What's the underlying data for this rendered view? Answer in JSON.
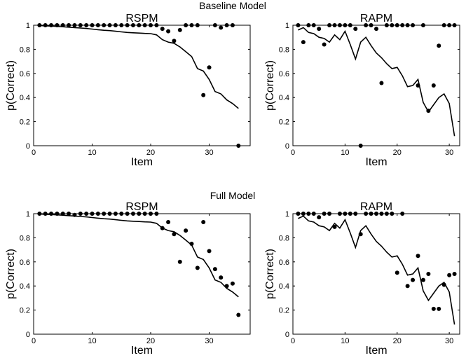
{
  "figure": {
    "sections": [
      "Baseline Model",
      "Full Model"
    ]
  },
  "chart_data": [
    {
      "type": "scatter",
      "panel": "baseline-rspm",
      "title": "RSPM",
      "xlabel": "Item",
      "ylabel": "p(Correct)",
      "xlim": [
        0,
        37
      ],
      "ylim": [
        0,
        1
      ],
      "xticks": [
        0,
        10,
        20,
        30
      ],
      "yticks": [
        0,
        0.2,
        0.4,
        0.6,
        0.8,
        1
      ],
      "series": [
        {
          "kind": "line",
          "x": [
            1,
            2,
            3,
            4,
            5,
            6,
            7,
            8,
            9,
            10,
            11,
            12,
            13,
            14,
            15,
            16,
            17,
            18,
            19,
            20,
            21,
            22,
            23,
            24,
            25,
            26,
            27,
            28,
            29,
            30,
            31,
            32,
            33,
            34,
            35
          ],
          "y": [
            0.997,
            0.995,
            0.993,
            0.99,
            0.987,
            0.984,
            0.98,
            0.977,
            0.973,
            0.968,
            0.963,
            0.958,
            0.955,
            0.95,
            0.945,
            0.94,
            0.937,
            0.935,
            0.932,
            0.93,
            0.92,
            0.88,
            0.86,
            0.85,
            0.82,
            0.78,
            0.74,
            0.64,
            0.62,
            0.55,
            0.45,
            0.43,
            0.38,
            0.35,
            0.31
          ]
        },
        {
          "kind": "points",
          "x": [
            1,
            2,
            3,
            4,
            5,
            6,
            7,
            8,
            9,
            10,
            11,
            12,
            13,
            14,
            15,
            16,
            17,
            18,
            19,
            20,
            21,
            22,
            23,
            24,
            25,
            26,
            27,
            28,
            29,
            30,
            31,
            32,
            33,
            34,
            35
          ],
          "y": [
            1,
            1,
            1,
            1,
            1,
            1,
            1,
            1,
            1,
            1,
            1,
            1,
            1,
            1,
            1,
            1,
            1,
            1,
            1,
            1,
            1,
            0.97,
            0.95,
            0.87,
            0.96,
            1,
            1,
            1,
            0.42,
            0.65,
            1,
            0.98,
            1,
            1,
            0
          ]
        }
      ]
    },
    {
      "type": "scatter",
      "panel": "baseline-rapm",
      "title": "RAPM",
      "xlabel": "Item",
      "ylabel": "p(Correct)",
      "xlim": [
        0,
        32
      ],
      "ylim": [
        0,
        1
      ],
      "xticks": [
        0,
        10,
        20,
        30
      ],
      "yticks": [
        0,
        0.2,
        0.4,
        0.6,
        0.8,
        1
      ],
      "series": [
        {
          "kind": "line",
          "x": [
            1,
            2,
            3,
            4,
            5,
            6,
            7,
            8,
            9,
            10,
            11,
            12,
            13,
            14,
            15,
            16,
            17,
            18,
            19,
            20,
            21,
            22,
            23,
            24,
            25,
            26,
            27,
            28,
            29,
            30,
            31
          ],
          "y": [
            0.96,
            0.98,
            0.94,
            0.93,
            0.9,
            0.89,
            0.86,
            0.92,
            0.88,
            0.95,
            0.84,
            0.72,
            0.86,
            0.9,
            0.83,
            0.77,
            0.73,
            0.68,
            0.64,
            0.65,
            0.58,
            0.49,
            0.5,
            0.55,
            0.36,
            0.28,
            0.34,
            0.4,
            0.43,
            0.35,
            0.08
          ]
        },
        {
          "kind": "points",
          "x": [
            1,
            2,
            3,
            4,
            5,
            6,
            7,
            8,
            9,
            10,
            11,
            12,
            13,
            14,
            15,
            16,
            17,
            18,
            19,
            20,
            21,
            22,
            23,
            24,
            25,
            26,
            27,
            28,
            29,
            30,
            31
          ],
          "y": [
            1,
            0.86,
            1,
            1,
            0.97,
            0.84,
            1,
            1,
            1,
            1,
            1,
            0.97,
            0,
            1,
            1,
            0.97,
            0.52,
            1,
            1,
            1,
            1,
            1,
            1,
            0.5,
            1,
            0.29,
            0.5,
            0.83,
            1,
            1,
            1
          ]
        }
      ]
    },
    {
      "type": "scatter",
      "panel": "full-rspm",
      "title": "RSPM",
      "xlabel": "Item",
      "ylabel": "p(Correct)",
      "xlim": [
        0,
        37
      ],
      "ylim": [
        0,
        1
      ],
      "xticks": [
        0,
        10,
        20,
        30
      ],
      "yticks": [
        0,
        0.2,
        0.4,
        0.6,
        0.8,
        1
      ],
      "series": [
        {
          "kind": "line",
          "x": [
            1,
            2,
            3,
            4,
            5,
            6,
            7,
            8,
            9,
            10,
            11,
            12,
            13,
            14,
            15,
            16,
            17,
            18,
            19,
            20,
            21,
            22,
            23,
            24,
            25,
            26,
            27,
            28,
            29,
            30,
            31,
            32,
            33,
            34,
            35
          ],
          "y": [
            0.997,
            0.995,
            0.993,
            0.99,
            0.987,
            0.984,
            0.98,
            0.977,
            0.973,
            0.968,
            0.963,
            0.958,
            0.955,
            0.95,
            0.945,
            0.94,
            0.937,
            0.935,
            0.932,
            0.93,
            0.92,
            0.88,
            0.86,
            0.85,
            0.82,
            0.78,
            0.74,
            0.64,
            0.62,
            0.55,
            0.45,
            0.43,
            0.38,
            0.35,
            0.31
          ]
        },
        {
          "kind": "points",
          "x": [
            1,
            2,
            3,
            4,
            5,
            6,
            7,
            8,
            9,
            10,
            11,
            12,
            13,
            14,
            15,
            16,
            17,
            18,
            19,
            20,
            21,
            22,
            23,
            24,
            25,
            26,
            27,
            28,
            29,
            30,
            31,
            32,
            33,
            34,
            35
          ],
          "y": [
            1,
            1,
            1,
            1,
            1,
            1,
            0.99,
            1,
            1,
            1,
            1,
            1,
            1,
            1,
            1,
            1,
            1,
            1,
            1,
            1,
            1,
            0.88,
            0.93,
            0.83,
            0.6,
            0.86,
            0.75,
            0.55,
            0.93,
            0.69,
            0.54,
            0.47,
            0.4,
            0.42,
            0.16
          ]
        }
      ]
    },
    {
      "type": "scatter",
      "panel": "full-rapm",
      "title": "RAPM",
      "xlabel": "Item",
      "ylabel": "p(Correct)",
      "xlim": [
        0,
        32
      ],
      "ylim": [
        0,
        1
      ],
      "xticks": [
        0,
        10,
        20,
        30
      ],
      "yticks": [
        0,
        0.2,
        0.4,
        0.6,
        0.8,
        1
      ],
      "series": [
        {
          "kind": "line",
          "x": [
            1,
            2,
            3,
            4,
            5,
            6,
            7,
            8,
            9,
            10,
            11,
            12,
            13,
            14,
            15,
            16,
            17,
            18,
            19,
            20,
            21,
            22,
            23,
            24,
            25,
            26,
            27,
            28,
            29,
            30,
            31
          ],
          "y": [
            0.96,
            0.98,
            0.94,
            0.93,
            0.9,
            0.89,
            0.86,
            0.92,
            0.88,
            0.95,
            0.84,
            0.72,
            0.86,
            0.9,
            0.83,
            0.77,
            0.73,
            0.68,
            0.64,
            0.65,
            0.58,
            0.49,
            0.5,
            0.55,
            0.36,
            0.28,
            0.34,
            0.4,
            0.43,
            0.35,
            0.08
          ]
        },
        {
          "kind": "points",
          "x": [
            1,
            2,
            3,
            4,
            5,
            6,
            7,
            8,
            9,
            10,
            11,
            12,
            13,
            14,
            15,
            16,
            17,
            18,
            19,
            20,
            21,
            22,
            23,
            24,
            25,
            26,
            27,
            28,
            29,
            30,
            31
          ],
          "y": [
            1,
            1,
            1,
            1,
            0.97,
            1,
            1,
            0.89,
            1,
            1,
            1,
            1,
            0.83,
            1,
            1,
            1,
            1,
            1,
            1,
            0.51,
            1,
            0.4,
            0.45,
            0.65,
            0.45,
            0.5,
            0.21,
            0.21,
            0.41,
            0.49,
            0.5
          ]
        }
      ]
    }
  ]
}
